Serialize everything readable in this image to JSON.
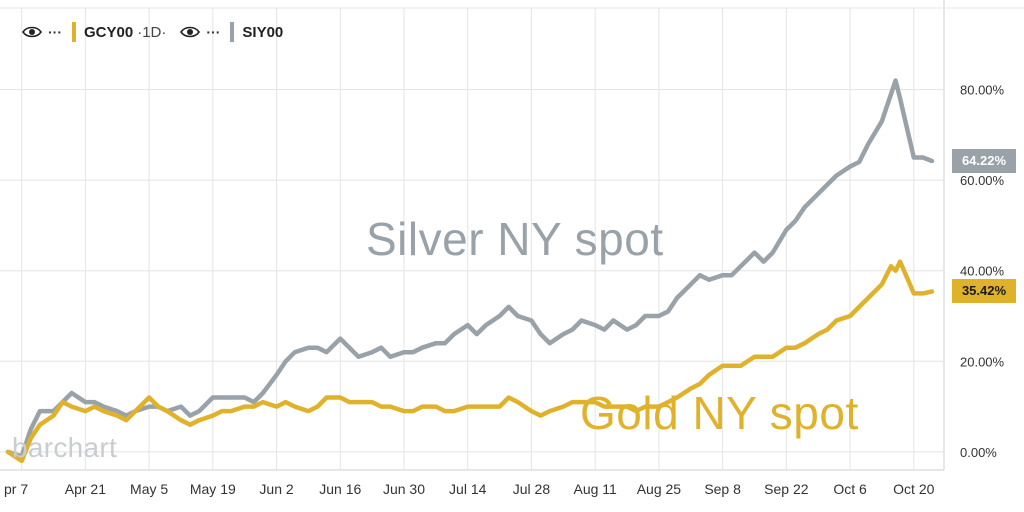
{
  "legend": {
    "gold_symbol": "GCY00",
    "interval": "1D",
    "silver_symbol": "SIY00",
    "more_glyph": "···"
  },
  "watermark": "barchart",
  "colors": {
    "gold": "#e0b22c",
    "silver": "#98a2a8",
    "grid": "#e4e4e4",
    "axis_text": "#333333",
    "tag_text": "#ffffff",
    "tag_text_gold": "#1a1a1a"
  },
  "chart_data": {
    "type": "line",
    "yaxis": {
      "min": -4,
      "max": 98,
      "ticks": [
        0,
        20,
        40,
        60,
        80
      ],
      "tick_labels": [
        "0.00%",
        "20.00%",
        "40.00%",
        "60.00%",
        "80.00%"
      ],
      "position": "right"
    },
    "xaxis": {
      "start": "2025-04-04",
      "end": "2025-10-24",
      "ticks": [
        "2025-04-07",
        "2025-04-21",
        "2025-05-05",
        "2025-05-19",
        "2025-06-02",
        "2025-06-16",
        "2025-06-30",
        "2025-07-14",
        "2025-07-28",
        "2025-08-11",
        "2025-08-25",
        "2025-09-08",
        "2025-09-22",
        "2025-10-06",
        "2025-10-20"
      ],
      "tick_labels": [
        "pr 7",
        "Apr 21",
        "May 5",
        "May 19",
        "Jun 2",
        "Jun 16",
        "Jun 30",
        "Jul 14",
        "Jul 28",
        "Aug 11",
        "Aug 25",
        "Sep 8",
        "Sep 22",
        "Oct 6",
        "Oct 20"
      ]
    },
    "grid": true,
    "annotations": {
      "silver": "Silver NY spot",
      "gold": "Gold NY spot"
    },
    "last_value_tags": {
      "silver": "64.22%",
      "gold": "35.42%"
    },
    "series": [
      {
        "name": "SIY00",
        "color": "#98a2a8",
        "x": [
          "2025-04-04",
          "2025-04-07",
          "2025-04-09",
          "2025-04-11",
          "2025-04-14",
          "2025-04-16",
          "2025-04-18",
          "2025-04-21",
          "2025-04-23",
          "2025-04-25",
          "2025-04-28",
          "2025-04-30",
          "2025-05-02",
          "2025-05-05",
          "2025-05-07",
          "2025-05-09",
          "2025-05-12",
          "2025-05-14",
          "2025-05-16",
          "2025-05-19",
          "2025-05-21",
          "2025-05-23",
          "2025-05-26",
          "2025-05-28",
          "2025-05-30",
          "2025-06-02",
          "2025-06-04",
          "2025-06-06",
          "2025-06-09",
          "2025-06-11",
          "2025-06-13",
          "2025-06-16",
          "2025-06-18",
          "2025-06-20",
          "2025-06-23",
          "2025-06-25",
          "2025-06-27",
          "2025-06-30",
          "2025-07-02",
          "2025-07-04",
          "2025-07-07",
          "2025-07-09",
          "2025-07-11",
          "2025-07-14",
          "2025-07-16",
          "2025-07-18",
          "2025-07-21",
          "2025-07-23",
          "2025-07-25",
          "2025-07-28",
          "2025-07-30",
          "2025-08-01",
          "2025-08-04",
          "2025-08-06",
          "2025-08-08",
          "2025-08-11",
          "2025-08-13",
          "2025-08-15",
          "2025-08-18",
          "2025-08-20",
          "2025-08-22",
          "2025-08-25",
          "2025-08-27",
          "2025-08-29",
          "2025-09-01",
          "2025-09-03",
          "2025-09-05",
          "2025-09-08",
          "2025-09-10",
          "2025-09-12",
          "2025-09-15",
          "2025-09-17",
          "2025-09-19",
          "2025-09-22",
          "2025-09-24",
          "2025-09-26",
          "2025-09-29",
          "2025-10-01",
          "2025-10-03",
          "2025-10-06",
          "2025-10-08",
          "2025-10-10",
          "2025-10-13",
          "2025-10-15",
          "2025-10-16",
          "2025-10-17",
          "2025-10-20",
          "2025-10-22",
          "2025-10-24"
        ],
        "values": [
          0,
          -1,
          5,
          9,
          9,
          11,
          13,
          11,
          11,
          10,
          9,
          8,
          9,
          10,
          10,
          9,
          10,
          8,
          9,
          12,
          12,
          12,
          12,
          11,
          13,
          17,
          20,
          22,
          23,
          23,
          22,
          25,
          23,
          21,
          22,
          23,
          21,
          22,
          22,
          23,
          24,
          24,
          26,
          28,
          26,
          28,
          30,
          32,
          30,
          29,
          26,
          24,
          26,
          27,
          29,
          28,
          27,
          29,
          27,
          28,
          30,
          30,
          31,
          34,
          37,
          39,
          38,
          39,
          39,
          41,
          44,
          42,
          44,
          49,
          51,
          54,
          57,
          59,
          61,
          63,
          64,
          68,
          73,
          79,
          82,
          78,
          65,
          65,
          64.22
        ]
      },
      {
        "name": "GCY00",
        "color": "#e0b22c",
        "x": [
          "2025-04-04",
          "2025-04-07",
          "2025-04-09",
          "2025-04-11",
          "2025-04-14",
          "2025-04-16",
          "2025-04-18",
          "2025-04-21",
          "2025-04-23",
          "2025-04-25",
          "2025-04-28",
          "2025-04-30",
          "2025-05-02",
          "2025-05-05",
          "2025-05-07",
          "2025-05-09",
          "2025-05-12",
          "2025-05-14",
          "2025-05-16",
          "2025-05-19",
          "2025-05-21",
          "2025-05-23",
          "2025-05-26",
          "2025-05-28",
          "2025-05-30",
          "2025-06-02",
          "2025-06-04",
          "2025-06-06",
          "2025-06-09",
          "2025-06-11",
          "2025-06-13",
          "2025-06-16",
          "2025-06-18",
          "2025-06-20",
          "2025-06-23",
          "2025-06-25",
          "2025-06-27",
          "2025-06-30",
          "2025-07-02",
          "2025-07-04",
          "2025-07-07",
          "2025-07-09",
          "2025-07-11",
          "2025-07-14",
          "2025-07-16",
          "2025-07-18",
          "2025-07-21",
          "2025-07-23",
          "2025-07-25",
          "2025-07-28",
          "2025-07-30",
          "2025-08-01",
          "2025-08-04",
          "2025-08-06",
          "2025-08-08",
          "2025-08-11",
          "2025-08-13",
          "2025-08-15",
          "2025-08-18",
          "2025-08-20",
          "2025-08-22",
          "2025-08-25",
          "2025-08-27",
          "2025-08-29",
          "2025-09-01",
          "2025-09-03",
          "2025-09-05",
          "2025-09-08",
          "2025-09-10",
          "2025-09-12",
          "2025-09-15",
          "2025-09-17",
          "2025-09-19",
          "2025-09-22",
          "2025-09-24",
          "2025-09-26",
          "2025-09-29",
          "2025-10-01",
          "2025-10-03",
          "2025-10-06",
          "2025-10-08",
          "2025-10-10",
          "2025-10-13",
          "2025-10-15",
          "2025-10-16",
          "2025-10-17",
          "2025-10-20",
          "2025-10-22",
          "2025-10-24"
        ],
        "values": [
          0,
          -2,
          3,
          6,
          8,
          11,
          10,
          9,
          10,
          9,
          8,
          7,
          9,
          12,
          10,
          9,
          7,
          6,
          7,
          8,
          9,
          9,
          10,
          10,
          11,
          10,
          11,
          10,
          9,
          10,
          12,
          12,
          11,
          11,
          11,
          10,
          10,
          9,
          9,
          10,
          10,
          9,
          9,
          10,
          10,
          10,
          10,
          12,
          11,
          9,
          8,
          9,
          10,
          11,
          11,
          11,
          10,
          10,
          10,
          9,
          10,
          10,
          11,
          12,
          14,
          15,
          17,
          19,
          19,
          19,
          21,
          21,
          21,
          23,
          23,
          24,
          26,
          27,
          29,
          30,
          32,
          34,
          37,
          41,
          40,
          42,
          35,
          35,
          35.42
        ]
      }
    ]
  }
}
